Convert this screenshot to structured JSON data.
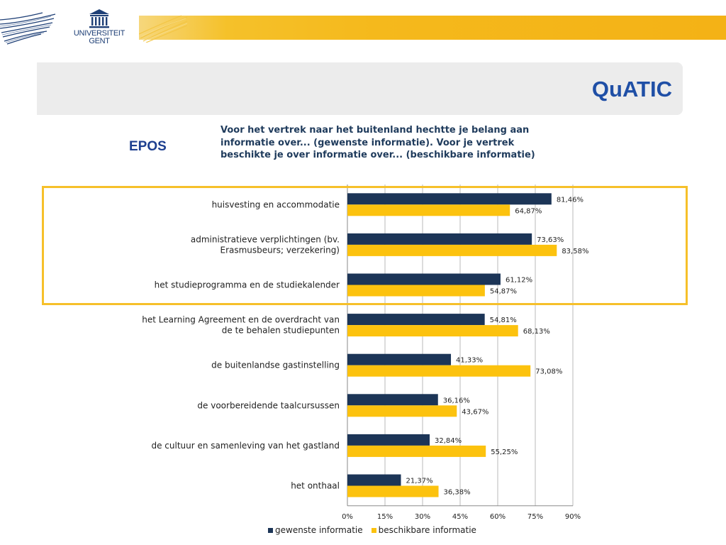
{
  "brand": {
    "logo_line1": "UNIVERSITEIT",
    "logo_line2": "GENT",
    "title": "QuATIC",
    "accent_color": "#f5b91c",
    "navy_color": "#1e3f76"
  },
  "section_label": "EPOS",
  "question": "Voor het vertrek naar het buitenland hechtte je belang aan informatie over... (gewenste informatie). Voor je vertrek beschikte je over informatie over... (beschikbare informatie)",
  "chart_data": {
    "type": "bar",
    "orientation": "horizontal",
    "categories": [
      [
        "huisvesting en accommodatie"
      ],
      [
        "administratieve verplichtingen (bv.",
        "Erasmusbeurs; verzekering)"
      ],
      [
        "het studieprogramma en de studiekalender"
      ],
      [
        "het Learning Agreement en de overdracht van",
        "de te behalen studiepunten"
      ],
      [
        "de buitenlandse gastinstelling"
      ],
      [
        "de voorbereidende taalcursussen"
      ],
      [
        "de cultuur en samenleving van het gastland"
      ],
      [
        "het onthaal"
      ]
    ],
    "series": [
      {
        "name": "gewenste informatie",
        "color": "#1c3557",
        "values": [
          81.46,
          73.63,
          61.12,
          54.81,
          41.33,
          36.16,
          32.84,
          21.37
        ],
        "labels": [
          "81,46%",
          "73,63%",
          "61,12%",
          "54,81%",
          "41,33%",
          "36,16%",
          "32,84%",
          "21,37%"
        ]
      },
      {
        "name": "beschikbare informatie",
        "color": "#fcc20e",
        "values": [
          64.87,
          83.58,
          54.87,
          68.13,
          73.08,
          43.67,
          55.25,
          36.38
        ],
        "labels": [
          "64,87%",
          "83,58%",
          "54,87%",
          "68,13%",
          "73,08%",
          "43,67%",
          "55,25%",
          "36,38%"
        ]
      }
    ],
    "xlim": [
      0,
      90
    ],
    "ticks": [
      "0%",
      "15%",
      "30%",
      "45%",
      "60%",
      "75%",
      "90%"
    ],
    "grid": true,
    "legend_position": "bottom",
    "highlighted_categories": [
      0,
      1,
      2
    ],
    "highlight_color": "#f6c02a"
  }
}
